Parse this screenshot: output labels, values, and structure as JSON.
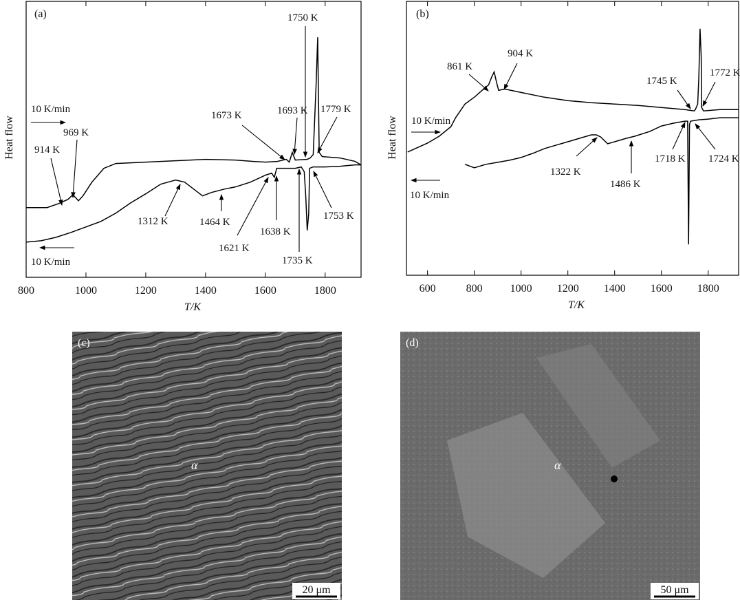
{
  "chart_data": [
    {
      "type": "line",
      "panel_label": "(a)",
      "xlabel": "T/K",
      "ylabel": "Heat flow",
      "xlim": [
        800,
        1920
      ],
      "xticks": [
        800,
        1000,
        1200,
        1400,
        1600,
        1800
      ],
      "ylim": [
        0,
        400
      ],
      "series": [
        {
          "color": "#000000",
          "x": [
            800,
            870,
            910,
            940,
            955,
            960,
            975,
            990,
            1020,
            1060,
            1100,
            1200,
            1300,
            1400,
            1500,
            1560,
            1600,
            1640,
            1670,
            1680,
            1690,
            1700,
            1740,
            1750,
            1760,
            1770,
            1775,
            1780,
            1790,
            1850,
            1900,
            1920
          ],
          "values": [
            101,
            101,
            107,
            113,
            119,
            118,
            111,
            118,
            138,
            158,
            165,
            167,
            169,
            171,
            170,
            168,
            167,
            168,
            171,
            167,
            181,
            170,
            171,
            173,
            178,
            283,
            348,
            181,
            175,
            173,
            168,
            163
          ]
        },
        {
          "color": "#000000",
          "x": [
            800,
            850,
            900,
            950,
            1000,
            1050,
            1100,
            1150,
            1200,
            1250,
            1300,
            1330,
            1360,
            1390,
            1420,
            1464,
            1500,
            1550,
            1600,
            1621,
            1630,
            1638,
            1650,
            1700,
            1720,
            1730,
            1735,
            1740,
            1745,
            1748,
            1760,
            1800,
            1850,
            1900,
            1920
          ],
          "values": [
            51,
            53,
            58,
            65,
            73,
            81,
            93,
            108,
            121,
            135,
            141,
            138,
            128,
            118,
            123,
            128,
            131,
            138,
            148,
            151,
            145,
            158,
            158,
            158,
            160,
            153,
            118,
            68,
            93,
            158,
            160,
            160,
            161,
            163,
            163
          ]
        }
      ],
      "annotations": [
        "1750 K",
        "1693 K",
        "1673 K",
        "1779 K",
        "10 K/min",
        "914 K",
        "969 K",
        "1312 K",
        "1464 K",
        "1621 K",
        "1638 K",
        "1735 K",
        "1753 K",
        "10 K/min"
      ]
    },
    {
      "type": "line",
      "panel_label": "(b)",
      "xlabel": "T/K",
      "ylabel": "Heat flow",
      "xlim": [
        510,
        1930
      ],
      "xticks": [
        600,
        800,
        1000,
        1200,
        1400,
        1600,
        1800
      ],
      "ylim": [
        0,
        400
      ],
      "series": [
        {
          "color": "#000000",
          "x": [
            515,
            600,
            650,
            700,
            720,
            760,
            800,
            840,
            861,
            875,
            885,
            895,
            904,
            930,
            1000,
            1100,
            1200,
            1300,
            1400,
            1500,
            1600,
            1700,
            1740,
            1745,
            1755,
            1760,
            1765,
            1770,
            1772,
            1780,
            1850,
            1930
          ],
          "values": [
            180,
            193,
            203,
            217,
            230,
            250,
            260,
            272,
            278,
            290,
            297,
            282,
            270,
            272,
            267,
            260,
            255,
            252,
            250,
            248,
            245,
            242,
            240,
            242,
            250,
            290,
            360,
            320,
            245,
            240,
            242,
            242
          ]
        },
        {
          "color": "#000000",
          "x": [
            760,
            800,
            850,
            900,
            950,
            1000,
            1050,
            1100,
            1150,
            1200,
            1250,
            1300,
            1322,
            1340,
            1370,
            1400,
            1450,
            1486,
            1550,
            1600,
            1650,
            1700,
            1712,
            1716,
            1720,
            1724,
            1760,
            1800,
            1850,
            1930
          ],
          "values": [
            162,
            157,
            162,
            165,
            168,
            172,
            178,
            185,
            190,
            195,
            200,
            205,
            205,
            202,
            192,
            195,
            200,
            203,
            210,
            218,
            222,
            225,
            225,
            45,
            220,
            225,
            227,
            228,
            230,
            230
          ]
        }
      ],
      "annotations": [
        "861 K",
        "904 K",
        "1745 K",
        "1772 K",
        "10 K/min",
        "10 K/min",
        "1322 K",
        "1486 K",
        "1718 K",
        "1724 K"
      ]
    }
  ],
  "images": [
    {
      "label": "(c)",
      "phase": "α",
      "scale_bar": "20 μm"
    },
    {
      "label": "(d)",
      "phase": "α",
      "scale_bar": "50 μm"
    }
  ]
}
